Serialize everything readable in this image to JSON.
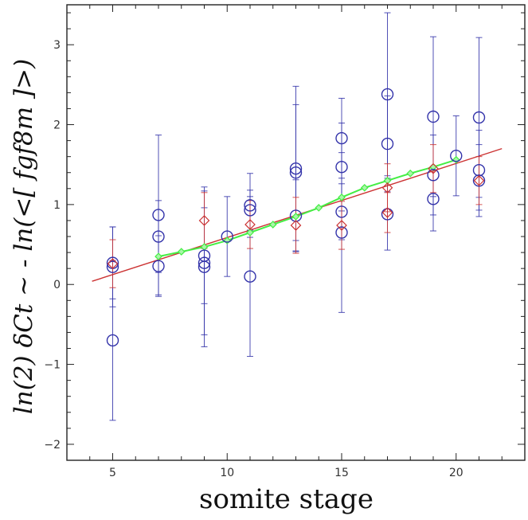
{
  "chart_data": {
    "type": "scatter",
    "title": "",
    "xlabel": "somite stage",
    "ylabel": "ln(2) δCt ~ - ln(<[ fgf8m ]>)",
    "xlim": [
      3,
      23
    ],
    "ylim": [
      -2.2,
      3.5
    ],
    "xticks": [
      5,
      10,
      15,
      20
    ],
    "yticks": [
      -2,
      -1,
      0,
      1,
      2,
      3
    ],
    "grid": false,
    "legend": "none",
    "series": [
      {
        "marker": "circle",
        "color": "#3333aa",
        "points": [
          {
            "x": 5,
            "y": 0.27,
            "err": 0.45
          },
          {
            "x": 5,
            "y": 0.22,
            "err": 0.5
          },
          {
            "x": 5,
            "y": -0.7,
            "err": 1.0
          },
          {
            "x": 7,
            "y": 0.87,
            "err": 1.0
          },
          {
            "x": 7,
            "y": 0.6,
            "err": 0.45
          },
          {
            "x": 7,
            "y": 0.23,
            "err": 0.38
          },
          {
            "x": 9,
            "y": 0.36,
            "err": 0.6
          },
          {
            "x": 9,
            "y": 0.27,
            "err": 0.9
          },
          {
            "x": 9,
            "y": 0.22,
            "err": 1.0
          },
          {
            "x": 10,
            "y": 0.6,
            "err": 0.5
          },
          {
            "x": 11,
            "y": 0.99,
            "err": 0.4
          },
          {
            "x": 11,
            "y": 0.93,
            "err": 0.25
          },
          {
            "x": 11,
            "y": 0.1,
            "err": 1.0
          },
          {
            "x": 13,
            "y": 1.45,
            "err": 1.03
          },
          {
            "x": 13,
            "y": 1.4,
            "err": 0.85
          },
          {
            "x": 13,
            "y": 0.86,
            "err": 0.45
          },
          {
            "x": 15,
            "y": 1.83,
            "err": 0.5
          },
          {
            "x": 15,
            "y": 1.47,
            "err": 0.55
          },
          {
            "x": 15,
            "y": 0.91,
            "err": 0.35
          },
          {
            "x": 15,
            "y": 0.65,
            "err": 1.0
          },
          {
            "x": 17,
            "y": 2.38,
            "err": 1.02
          },
          {
            "x": 17,
            "y": 1.76,
            "err": 0.6
          },
          {
            "x": 17,
            "y": 0.88,
            "err": 0.45
          },
          {
            "x": 19,
            "y": 2.1,
            "err": 1.0
          },
          {
            "x": 19,
            "y": 1.37,
            "err": 0.5
          },
          {
            "x": 19,
            "y": 1.07,
            "err": 0.4
          },
          {
            "x": 20,
            "y": 1.61,
            "err": 0.5
          },
          {
            "x": 21,
            "y": 2.09,
            "err": 1.0
          },
          {
            "x": 21,
            "y": 1.43,
            "err": 0.5
          },
          {
            "x": 21,
            "y": 1.3,
            "err": 0.45
          }
        ]
      },
      {
        "marker": "diamond",
        "color": "#cc3333",
        "points": [
          {
            "x": 5,
            "y": 0.26,
            "err": 0.3
          },
          {
            "x": 9,
            "y": 0.8,
            "err": 0.35
          },
          {
            "x": 11,
            "y": 0.75,
            "err": 0.3
          },
          {
            "x": 13,
            "y": 0.74,
            "err": 0.35
          },
          {
            "x": 15,
            "y": 0.74,
            "err": 0.3
          },
          {
            "x": 17,
            "y": 1.21,
            "err": 0.3
          },
          {
            "x": 17,
            "y": 0.9,
            "err": 0.25
          },
          {
            "x": 19,
            "y": 1.45,
            "err": 0.3
          },
          {
            "x": 21,
            "y": 1.3,
            "err": 0.3
          }
        ]
      },
      {
        "marker": "diamond",
        "color": "#44ee44",
        "line": true,
        "points": [
          {
            "x": 7,
            "y": 0.35
          },
          {
            "x": 8,
            "y": 0.41
          },
          {
            "x": 9,
            "y": 0.47
          },
          {
            "x": 10,
            "y": 0.55
          },
          {
            "x": 11,
            "y": 0.65
          },
          {
            "x": 12,
            "y": 0.75
          },
          {
            "x": 13,
            "y": 0.85
          },
          {
            "x": 14,
            "y": 0.96
          },
          {
            "x": 15,
            "y": 1.09
          },
          {
            "x": 16,
            "y": 1.21
          },
          {
            "x": 17,
            "y": 1.3
          },
          {
            "x": 18,
            "y": 1.39
          },
          {
            "x": 19,
            "y": 1.47
          },
          {
            "x": 20,
            "y": 1.56
          }
        ]
      },
      {
        "marker": "none",
        "color": "#cc3333",
        "type": "fit-line",
        "points": [
          {
            "x": 4.1,
            "y": 0.04
          },
          {
            "x": 22.0,
            "y": 1.7
          }
        ]
      }
    ]
  }
}
